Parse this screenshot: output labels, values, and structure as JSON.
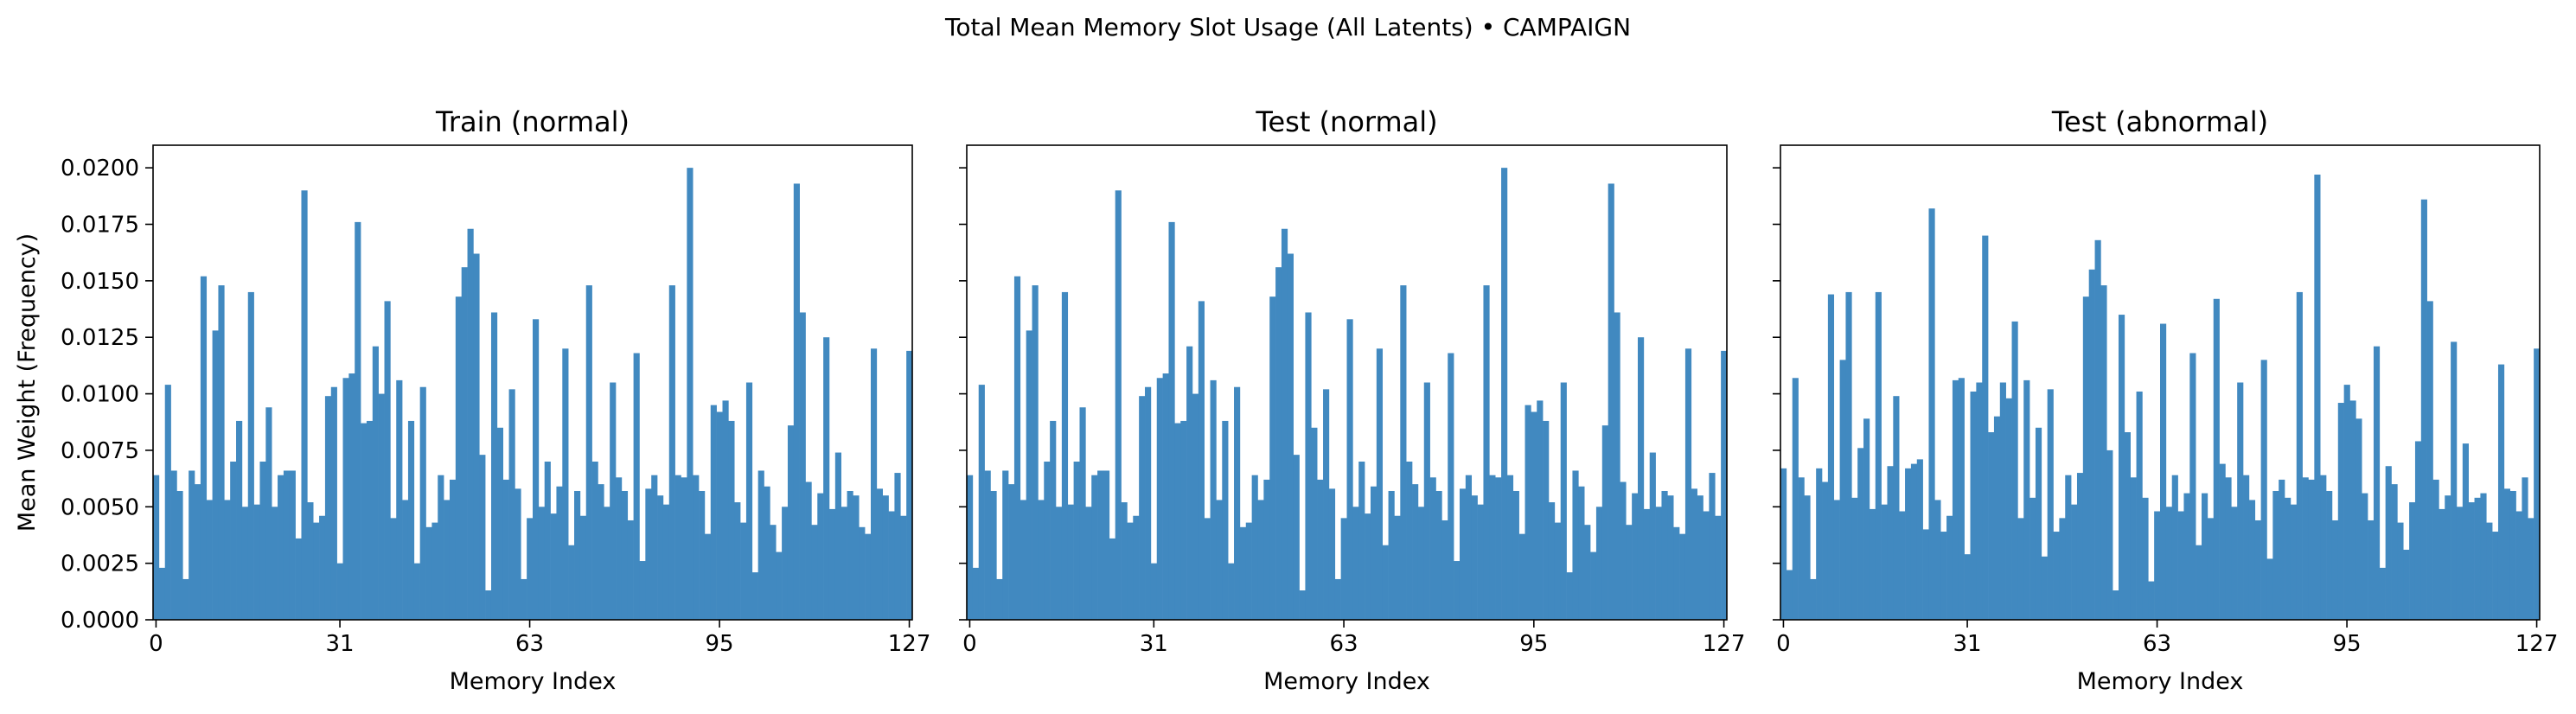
{
  "suptitle": "Total Mean Memory Slot Usage (All Latents) • CAMPAIGN",
  "colors": {
    "bar": "#4189c0",
    "axis": "#000000",
    "background": "#ffffff"
  },
  "chart_data": [
    {
      "type": "bar",
      "title": "Train (normal)",
      "xlabel": "Memory Index",
      "ylabel": "Mean Weight (Frequency)",
      "xticks": [
        0,
        31,
        63,
        95,
        127
      ],
      "xlim": [
        -0.5,
        127.5
      ],
      "ylim": [
        0,
        0.021
      ],
      "yticks": [
        "0.0000",
        "0.0025",
        "0.0050",
        "0.0075",
        "0.0100",
        "0.0125",
        "0.0150",
        "0.0175",
        "0.0200"
      ],
      "grid": false,
      "categories_range": [
        0,
        127
      ],
      "values": [
        0.0064,
        0.0023,
        0.0104,
        0.0066,
        0.0057,
        0.0018,
        0.0066,
        0.006,
        0.0152,
        0.0053,
        0.0128,
        0.0148,
        0.0053,
        0.007,
        0.0088,
        0.005,
        0.0145,
        0.0051,
        0.007,
        0.0094,
        0.005,
        0.0064,
        0.0066,
        0.0066,
        0.0036,
        0.019,
        0.0052,
        0.0043,
        0.0046,
        0.0099,
        0.0103,
        0.0025,
        0.0107,
        0.0109,
        0.0176,
        0.0087,
        0.0088,
        0.0121,
        0.01,
        0.0141,
        0.0045,
        0.0106,
        0.0053,
        0.0088,
        0.0025,
        0.0103,
        0.0041,
        0.0043,
        0.0064,
        0.0053,
        0.0062,
        0.0143,
        0.0156,
        0.0173,
        0.0162,
        0.0073,
        0.0013,
        0.0136,
        0.0085,
        0.0062,
        0.0102,
        0.0058,
        0.0018,
        0.0045,
        0.0133,
        0.005,
        0.007,
        0.0047,
        0.0059,
        0.012,
        0.0033,
        0.0057,
        0.0046,
        0.0148,
        0.007,
        0.006,
        0.005,
        0.0105,
        0.0063,
        0.0057,
        0.0044,
        0.0118,
        0.0026,
        0.0058,
        0.0064,
        0.0055,
        0.0051,
        0.0148,
        0.0064,
        0.0063,
        0.02,
        0.0064,
        0.0057,
        0.0038,
        0.0095,
        0.0092,
        0.0097,
        0.0088,
        0.0052,
        0.0043,
        0.0105,
        0.0021,
        0.0066,
        0.0059,
        0.0042,
        0.003,
        0.005,
        0.0086,
        0.0193,
        0.0136,
        0.0061,
        0.0042,
        0.0056,
        0.0125,
        0.0049,
        0.0074,
        0.005,
        0.0057,
        0.0055,
        0.0041,
        0.0038,
        0.012,
        0.0058,
        0.0055,
        0.0048,
        0.0065,
        0.0046,
        0.0119
      ]
    },
    {
      "type": "bar",
      "title": "Test (normal)",
      "xlabel": "Memory Index",
      "ylabel": "",
      "xticks": [
        0,
        31,
        63,
        95,
        127
      ],
      "xlim": [
        -0.5,
        127.5
      ],
      "ylim": [
        0,
        0.021
      ],
      "grid": false,
      "categories_range": [
        0,
        127
      ],
      "values": [
        0.0064,
        0.0023,
        0.0104,
        0.0066,
        0.0057,
        0.0018,
        0.0066,
        0.006,
        0.0152,
        0.0053,
        0.0128,
        0.0148,
        0.0053,
        0.007,
        0.0088,
        0.005,
        0.0145,
        0.0051,
        0.007,
        0.0094,
        0.005,
        0.0064,
        0.0066,
        0.0066,
        0.0036,
        0.019,
        0.0052,
        0.0043,
        0.0046,
        0.0099,
        0.0103,
        0.0025,
        0.0107,
        0.0109,
        0.0176,
        0.0087,
        0.0088,
        0.0121,
        0.01,
        0.0141,
        0.0045,
        0.0106,
        0.0053,
        0.0088,
        0.0025,
        0.0103,
        0.0041,
        0.0043,
        0.0064,
        0.0053,
        0.0062,
        0.0143,
        0.0156,
        0.0173,
        0.0162,
        0.0073,
        0.0013,
        0.0136,
        0.0085,
        0.0062,
        0.0102,
        0.0058,
        0.0018,
        0.0045,
        0.0133,
        0.005,
        0.007,
        0.0047,
        0.0059,
        0.012,
        0.0033,
        0.0057,
        0.0046,
        0.0148,
        0.007,
        0.006,
        0.005,
        0.0105,
        0.0063,
        0.0057,
        0.0044,
        0.0118,
        0.0026,
        0.0058,
        0.0064,
        0.0055,
        0.0051,
        0.0148,
        0.0064,
        0.0063,
        0.02,
        0.0064,
        0.0057,
        0.0038,
        0.0095,
        0.0092,
        0.0097,
        0.0088,
        0.0052,
        0.0043,
        0.0105,
        0.0021,
        0.0066,
        0.0059,
        0.0042,
        0.003,
        0.005,
        0.0086,
        0.0193,
        0.0136,
        0.0061,
        0.0042,
        0.0056,
        0.0125,
        0.0049,
        0.0074,
        0.005,
        0.0057,
        0.0055,
        0.0041,
        0.0038,
        0.012,
        0.0058,
        0.0055,
        0.0048,
        0.0065,
        0.0046,
        0.0119
      ]
    },
    {
      "type": "bar",
      "title": "Test (abnormal)",
      "xlabel": "Memory Index",
      "ylabel": "",
      "xticks": [
        0,
        31,
        63,
        95,
        127
      ],
      "xlim": [
        -0.5,
        127.5
      ],
      "ylim": [
        0,
        0.021
      ],
      "grid": false,
      "categories_range": [
        0,
        127
      ],
      "values": [
        0.0067,
        0.0022,
        0.0107,
        0.0063,
        0.0055,
        0.0018,
        0.0067,
        0.0061,
        0.0144,
        0.0053,
        0.0115,
        0.0145,
        0.0054,
        0.0076,
        0.0089,
        0.0049,
        0.0145,
        0.0051,
        0.0068,
        0.0099,
        0.0048,
        0.0067,
        0.0069,
        0.0071,
        0.004,
        0.0182,
        0.0053,
        0.0039,
        0.0046,
        0.0106,
        0.0107,
        0.0029,
        0.0101,
        0.0105,
        0.017,
        0.0083,
        0.009,
        0.0105,
        0.0098,
        0.0132,
        0.0045,
        0.0106,
        0.0054,
        0.0085,
        0.0028,
        0.0102,
        0.0039,
        0.0045,
        0.0064,
        0.0051,
        0.0065,
        0.0143,
        0.0155,
        0.0168,
        0.0148,
        0.0075,
        0.0013,
        0.0135,
        0.0083,
        0.0063,
        0.0101,
        0.0054,
        0.0017,
        0.0048,
        0.0131,
        0.005,
        0.0064,
        0.0048,
        0.0056,
        0.0118,
        0.0033,
        0.0056,
        0.0045,
        0.0142,
        0.0069,
        0.0063,
        0.005,
        0.0105,
        0.0064,
        0.0053,
        0.0044,
        0.0115,
        0.0027,
        0.0057,
        0.0062,
        0.0054,
        0.0051,
        0.0145,
        0.0063,
        0.0062,
        0.0197,
        0.0064,
        0.0057,
        0.0044,
        0.0096,
        0.0104,
        0.0097,
        0.0089,
        0.0056,
        0.0044,
        0.0121,
        0.0023,
        0.0068,
        0.006,
        0.0043,
        0.0031,
        0.0052,
        0.0079,
        0.0186,
        0.0141,
        0.0062,
        0.0049,
        0.0055,
        0.0123,
        0.005,
        0.0078,
        0.0052,
        0.0054,
        0.0056,
        0.0043,
        0.0039,
        0.0113,
        0.0058,
        0.0057,
        0.0048,
        0.0063,
        0.0045,
        0.012
      ]
    }
  ]
}
